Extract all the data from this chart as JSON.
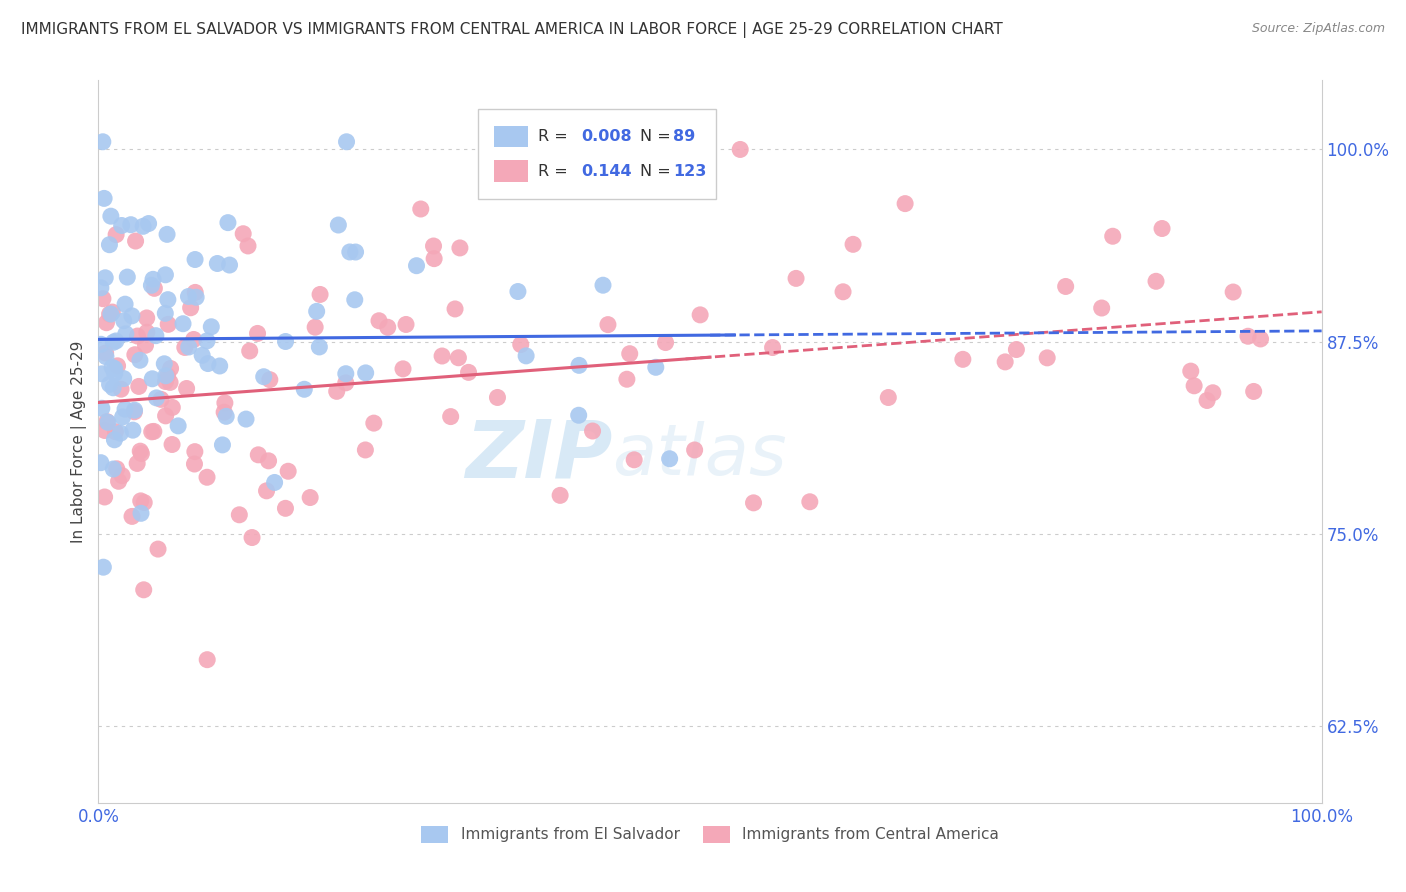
{
  "title": "IMMIGRANTS FROM EL SALVADOR VS IMMIGRANTS FROM CENTRAL AMERICA IN LABOR FORCE | AGE 25-29 CORRELATION CHART",
  "source": "Source: ZipAtlas.com",
  "ylabel": "In Labor Force | Age 25-29",
  "xlim": [
    0.0,
    1.0
  ],
  "ylim": [
    0.575,
    1.045
  ],
  "yticks": [
    0.625,
    0.75,
    0.875,
    1.0
  ],
  "ytick_labels": [
    "62.5%",
    "75.0%",
    "87.5%",
    "100.0%"
  ],
  "xtick_labels": [
    "0.0%",
    "100.0%"
  ],
  "legend_items": [
    {
      "label": "Immigrants from El Salvador",
      "color": "#a8c8f0",
      "R": "0.008",
      "N": "89"
    },
    {
      "label": "Immigrants from Central America",
      "color": "#f4a8b8",
      "R": "0.144",
      "N": "123"
    }
  ],
  "blue_line_color": "#4169e1",
  "pink_line_color": "#e0607a",
  "scatter_blue_color": "#a8c8f0",
  "scatter_pink_color": "#f4a8b8",
  "watermark_zip": "ZIP",
  "watermark_atlas": "atlas",
  "background_color": "#ffffff",
  "grid_color": "#cccccc"
}
